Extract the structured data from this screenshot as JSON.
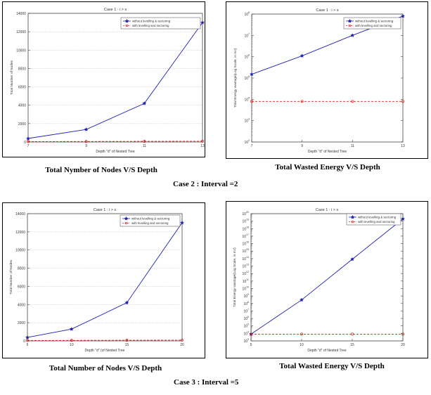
{
  "charts": [
    {
      "id": "c1",
      "chart_data": {
        "type": "line",
        "title": "Case 1 : i > s",
        "xlabel": "Depth \"d\" of Nested Tree",
        "ylabel": "Total Number of Nodes",
        "x": [
          7,
          9,
          11,
          13
        ],
        "xticks": [
          7,
          9,
          11,
          13
        ],
        "xlim": [
          7,
          13
        ],
        "ylim": [
          0,
          14000
        ],
        "yticks": [
          0,
          2000,
          4000,
          6000,
          8000,
          10000,
          12000,
          14000
        ],
        "yscale": "linear",
        "grid": "horizontal",
        "legend": "top-right",
        "series": [
          {
            "name": "without levelling & sectoring",
            "color": "#1f1fb4",
            "style": "solid",
            "marker": "*",
            "values": [
              380,
              1360,
              4200,
              13000
            ]
          },
          {
            "name": "with levelling and sectoring",
            "color": "#e02020",
            "style": "dashed",
            "marker": "o",
            "values": [
              40,
              55,
              70,
              85
            ]
          }
        ]
      }
    },
    {
      "id": "c2",
      "chart_data": {
        "type": "line",
        "title": "Case 1 : i > s",
        "xlabel": "Depth \"d\" of Nested Tree",
        "ylabel": "Total Energy wastage(Log Scale, in mJ)",
        "x": [
          7,
          9,
          11,
          13
        ],
        "xticks": [
          7,
          9,
          11,
          13
        ],
        "xlim": [
          7,
          13
        ],
        "ylim_exp": [
          2,
          8
        ],
        "yscale": "log",
        "grid": "none",
        "legend": "top-right",
        "series": [
          {
            "name": "without levelling & sectoring",
            "color": "#1f1fb4",
            "style": "solid",
            "marker": "*",
            "values": [
              150000,
              1100000,
              10000000,
              80000000
            ]
          },
          {
            "name": "with levelling and sectoring",
            "color": "#e02020",
            "style": "dashed",
            "marker": "o",
            "values": [
              8000,
              8000,
              8000,
              8000
            ]
          }
        ]
      }
    },
    {
      "id": "c3",
      "chart_data": {
        "type": "line",
        "title": "Case 1 : i > s",
        "xlabel": "Depth \"d\" (of Nested Tree",
        "ylabel": "Total Number of Nodes",
        "x": [
          6,
          10,
          15,
          20
        ],
        "xticks": [
          6,
          10,
          15,
          20
        ],
        "xlim": [
          6,
          20
        ],
        "ylim": [
          0,
          14000
        ],
        "yticks": [
          0,
          2000,
          4000,
          6000,
          8000,
          10000,
          12000,
          14000
        ],
        "yscale": "linear",
        "grid": "horizontal",
        "legend": "top-right",
        "series": [
          {
            "name": "without levelling & sectoring",
            "color": "#1f1fb4",
            "style": "solid",
            "marker": "*",
            "values": [
              380,
              1300,
              4200,
              13000
            ]
          },
          {
            "name": "with levelling and sectoring",
            "color": "#e02020",
            "style": "dashed",
            "marker": "o",
            "values": [
              40,
              55,
              70,
              85
            ]
          }
        ]
      }
    },
    {
      "id": "c4",
      "chart_data": {
        "type": "line",
        "title": "Case 1 : i > s",
        "xlabel": "Depth \"d\" of Nested Tree",
        "ylabel": "Total Energy wastage(Log Scale, in mJ)",
        "x": [
          5,
          10,
          15,
          20
        ],
        "xticks": [
          5,
          10,
          15,
          20
        ],
        "xlim": [
          5,
          20
        ],
        "ylim_exp": [
          3,
          20
        ],
        "yscale": "log",
        "grid": "none",
        "legend": "top-right",
        "series": [
          {
            "name": "without levelling & sectoring",
            "color": "#1f1fb4",
            "style": "solid",
            "marker": "*",
            "values": [
              8000.0,
              300000000.0,
              80000000000000.0,
              2e+19
            ]
          },
          {
            "name": "with levelling and sectoring",
            "color": "#e02020",
            "style": "dashed",
            "marker": "o",
            "values": [
              8000.0,
              8000.0,
              8000.0,
              8000.0
            ]
          }
        ]
      }
    }
  ],
  "captions": {
    "c1": "Total Nymber of Nodes V/S Depth",
    "c2": "Total Wasted Energy V/S Depth",
    "case2": "Case 2 : Interval =2",
    "c3": "Total Number of Nodes V/S Depth",
    "c4": "Total Wasted Energy V/S Depth",
    "case3": "Case 3 : Interval =5"
  }
}
